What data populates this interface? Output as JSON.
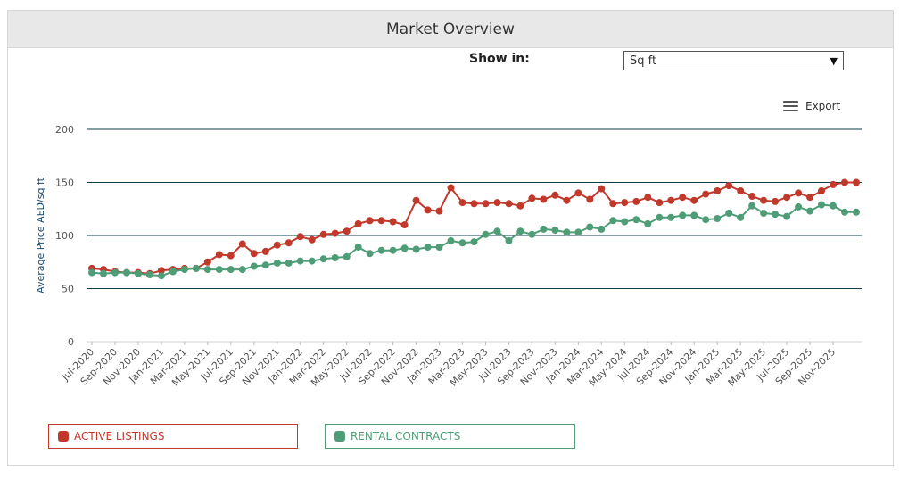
{
  "panel": {
    "title": "Market Overview"
  },
  "controls": {
    "show_in_label": "Show in:",
    "unit_selected": "Sq ft",
    "export_label": "Export"
  },
  "colors": {
    "active": "#c0392b",
    "rental": "#4e9d76",
    "grid": "#0f3b4a",
    "axis_text": "#555555"
  },
  "chart_data": {
    "type": "line",
    "ylabel": "Average Price AED/sq ft",
    "ylim": [
      0,
      200
    ],
    "yticks": [
      0,
      50,
      100,
      150,
      200
    ],
    "x": [
      "Jul-2020",
      "Aug-2020",
      "Sep-2020",
      "Oct-2020",
      "Nov-2020",
      "Dec-2020",
      "Jan-2021",
      "Feb-2021",
      "Mar-2021",
      "Apr-2021",
      "May-2021",
      "Jun-2021",
      "Jul-2021",
      "Aug-2021",
      "Sep-2021",
      "Oct-2021",
      "Nov-2021",
      "Dec-2021",
      "Jan-2022",
      "Feb-2022",
      "Mar-2022",
      "Apr-2022",
      "May-2022",
      "Jun-2022",
      "Jul-2022",
      "Aug-2022",
      "Sep-2022",
      "Oct-2022",
      "Nov-2022",
      "Dec-2022",
      "Jan-2023",
      "Feb-2023",
      "Mar-2023",
      "Apr-2023",
      "May-2023",
      "Jun-2023",
      "Jul-2023",
      "Aug-2023",
      "Sep-2023",
      "Oct-2023",
      "Nov-2023",
      "Dec-2023",
      "Jan-2024",
      "Feb-2024",
      "Mar-2024",
      "Apr-2024",
      "May-2024",
      "Jun-2024",
      "Jul-2024",
      "Aug-2024",
      "Sep-2024",
      "Oct-2024",
      "Nov-2024",
      "Dec-2024",
      "Jan-2025",
      "Feb-2025",
      "Mar-2025",
      "Apr-2025",
      "May-2025",
      "Jun-2025",
      "Jul-2025",
      "Aug-2025",
      "Sep-2025",
      "Oct-2025",
      "Nov-2025",
      "Dec-2025",
      "Jan-2026"
    ],
    "xtick_labels": [
      "Jul-2020",
      "Sep-2020",
      "Nov-2020",
      "Jan-2021",
      "Mar-2021",
      "May-2021",
      "Jul-2021",
      "Sep-2021",
      "Nov-2021",
      "Jan-2022",
      "Mar-2022",
      "May-2022",
      "Jul-2022",
      "Sep-2022",
      "Nov-2022",
      "Jan-2023",
      "Mar-2023",
      "May-2023",
      "Jul-2023",
      "Sep-2023",
      "Nov-2023",
      "Jan-2024",
      "Mar-2024",
      "May-2024",
      "Jul-2024",
      "Sep-2024",
      "Nov-2024",
      "Jan-2025",
      "Mar-2025",
      "May-2025",
      "Jul-2025",
      "Sep-2025",
      "Nov-2025"
    ],
    "series": [
      {
        "name": "ACTIVE LISTINGS",
        "key": "active",
        "values": [
          69,
          68,
          66,
          65,
          65,
          64,
          67,
          68,
          69,
          69,
          75,
          82,
          81,
          92,
          83,
          85,
          91,
          93,
          99,
          96,
          101,
          102,
          104,
          111,
          114,
          114,
          113,
          110,
          133,
          124,
          123,
          145,
          131,
          130,
          130,
          131,
          130,
          128,
          135,
          134,
          138,
          133,
          140,
          134,
          144,
          130,
          131,
          132,
          136,
          131,
          133,
          136,
          133,
          139,
          142,
          147,
          142,
          137,
          133,
          132,
          136,
          140,
          136,
          142,
          148,
          150,
          150
        ]
      },
      {
        "name": "RENTAL CONTRACTS",
        "key": "rental",
        "values": [
          65,
          64,
          65,
          65,
          64,
          63,
          62,
          66,
          68,
          69,
          68,
          68,
          68,
          68,
          71,
          72,
          74,
          74,
          76,
          76,
          78,
          79,
          80,
          89,
          83,
          86,
          86,
          88,
          87,
          89,
          89,
          95,
          93,
          94,
          101,
          104,
          95,
          104,
          101,
          106,
          105,
          103,
          103,
          108,
          106,
          114,
          113,
          115,
          111,
          117,
          117,
          119,
          119,
          115,
          116,
          121,
          117,
          128,
          121,
          120,
          118,
          127,
          123,
          129,
          128,
          122,
          122
        ]
      }
    ]
  }
}
